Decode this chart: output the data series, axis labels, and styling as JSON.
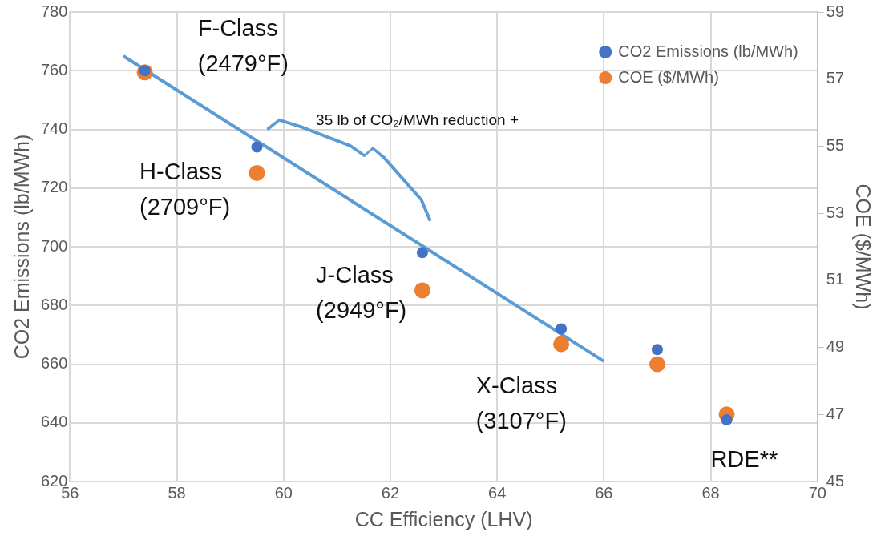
{
  "chart_data": {
    "type": "scatter",
    "xlabel": "CC Efficiency (LHV)",
    "ylabel": "CO2 Emissions (lb/MWh)",
    "y2label": "COE ($/MWh)",
    "x": [
      57.4,
      59.5,
      62.6,
      65.2,
      67.0,
      68.3
    ],
    "series": [
      {
        "name": "CO2 Emissions (lb/MWh)",
        "color": "#4472c4",
        "values": [
          760,
          734,
          698,
          672,
          665,
          641
        ]
      },
      {
        "name": "COE ($/MWh)",
        "color": "#ed7d31",
        "axis": "y2",
        "values": [
          57.2,
          54.2,
          50.7,
          49.1,
          48.5,
          47.0
        ]
      },
      {
        "type": "line",
        "color": "#5b9bd5",
        "x": [
          57.0,
          66.0
        ],
        "values": [
          765,
          661
        ],
        "marker": "none"
      }
    ],
    "xlim": [
      56,
      70
    ],
    "xticks": [
      56,
      58,
      60,
      62,
      64,
      66,
      68,
      70
    ],
    "ylim": [
      620,
      780
    ],
    "yticks": [
      620,
      640,
      660,
      680,
      700,
      720,
      740,
      760,
      780
    ],
    "y2lim": [
      45,
      59
    ],
    "y2ticks": [
      45,
      47,
      49,
      51,
      53,
      55,
      57,
      59
    ],
    "grid": true,
    "legend": "top right",
    "marker": "circle",
    "annotations": [
      "F-Class\n(2479°F)",
      "H-Class\n(2709°F)",
      "J-Class\n(2949°F)",
      "X-Class\n(3107°F)",
      "RDE**",
      "35 lb of CO₂/MWh reduction +"
    ]
  }
}
